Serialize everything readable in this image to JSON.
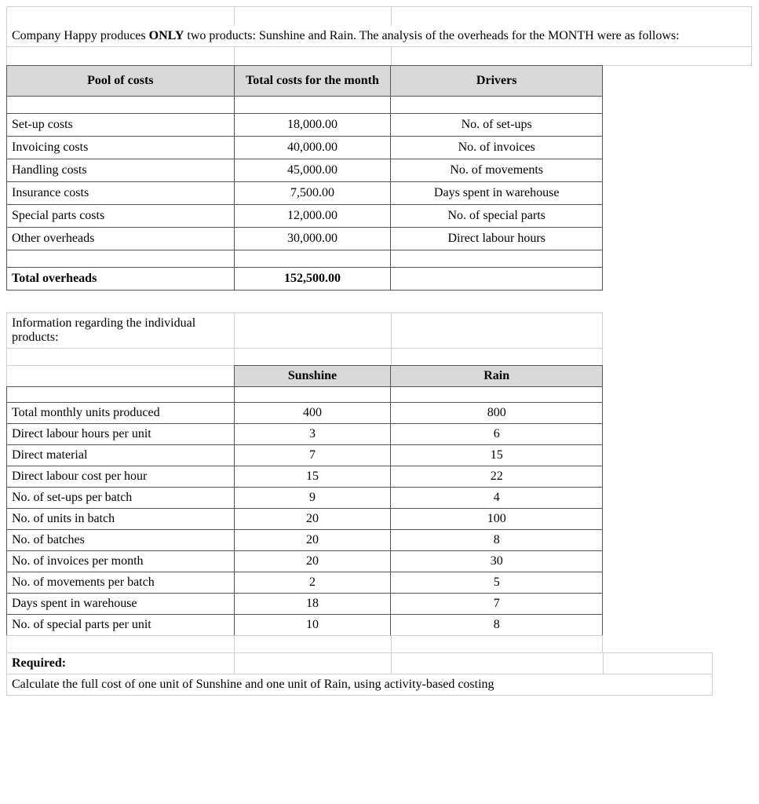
{
  "intro": {
    "prefix": "Company Happy produces ",
    "only": "ONLY",
    "suffix": " two products: Sunshine and Rain. The analysis of the overheads for the MONTH were as follows:"
  },
  "table1": {
    "headers": {
      "col1": "Pool of costs",
      "col2": "Total costs for the month",
      "col3": "Drivers"
    },
    "rows": [
      {
        "label": "Set-up costs",
        "cost": "18,000.00",
        "driver": "No. of set-ups"
      },
      {
        "label": "Invoicing costs",
        "cost": "40,000.00",
        "driver": "No. of invoices"
      },
      {
        "label": "Handling costs",
        "cost": "45,000.00",
        "driver": "No. of movements"
      },
      {
        "label": "Insurance costs",
        "cost": "7,500.00",
        "driver": "Days spent in warehouse"
      },
      {
        "label": "Special parts costs",
        "cost": "12,000.00",
        "driver": "No. of special parts"
      },
      {
        "label": "Other overheads",
        "cost": "30,000.00",
        "driver": "Direct labour hours"
      }
    ],
    "total": {
      "label": "Total overheads",
      "cost": "152,500.00"
    }
  },
  "info_heading": "Information regarding the individual products:",
  "table2": {
    "headers": {
      "col2": "Sunshine",
      "col3": "Rain"
    },
    "rows": [
      {
        "label": "Total monthly units produced",
        "sunshine": "400",
        "rain": "800"
      },
      {
        "label": "Direct labour hours per unit",
        "sunshine": "3",
        "rain": "6"
      },
      {
        "label": "Direct material",
        "sunshine": "7",
        "rain": "15"
      },
      {
        "label": "Direct labour cost per hour",
        "sunshine": "15",
        "rain": "22"
      },
      {
        "label": "No. of set-ups per batch",
        "sunshine": "9",
        "rain": "4"
      },
      {
        "label": "No. of units in batch",
        "sunshine": "20",
        "rain": "100"
      },
      {
        "label": "No. of batches",
        "sunshine": "20",
        "rain": "8"
      },
      {
        "label": "No. of invoices per month",
        "sunshine": "20",
        "rain": "30"
      },
      {
        "label": "No. of movements per batch",
        "sunshine": "2",
        "rain": "5"
      },
      {
        "label": "Days spent in warehouse",
        "sunshine": "18",
        "rain": "7"
      },
      {
        "label": "No. of special parts per unit",
        "sunshine": "10",
        "rain": "8"
      }
    ]
  },
  "required": {
    "label": "Required:",
    "text": "Calculate the full cost of one unit of Sunshine and one unit of Rain, using activity-based costing"
  },
  "style": {
    "header_bg": "#d9d9d9",
    "border_color": "#555555",
    "light_border": "#d0d0d0",
    "font_family": "Times New Roman",
    "base_fontsize": 16
  }
}
